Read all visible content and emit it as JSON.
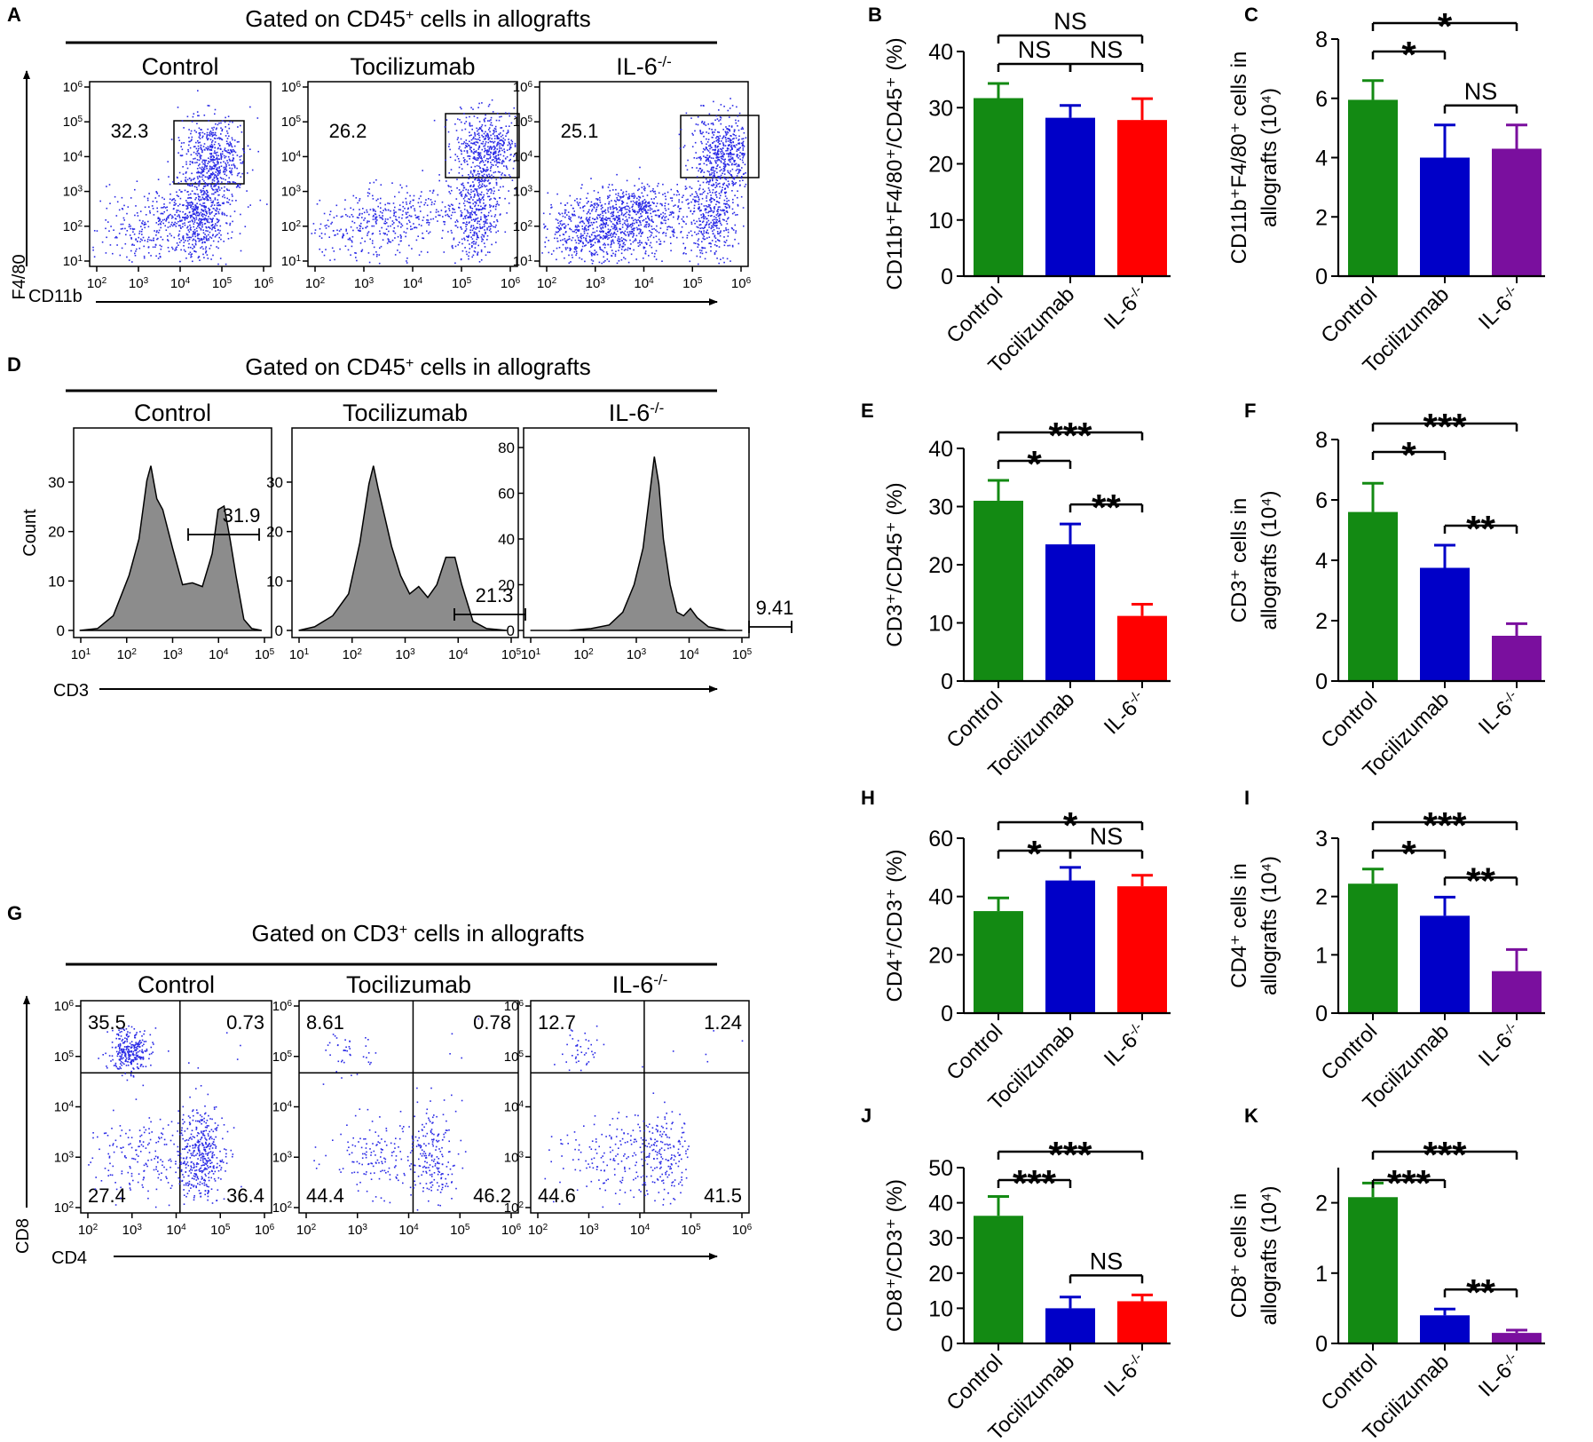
{
  "colors": {
    "control": "#138a13",
    "tocilizumab": "#0000c8",
    "il6_red": "#ff0000",
    "il6_purple": "#7a0f9e",
    "dot": "#2a2ae6",
    "histogram_fill": "#8c8c8c"
  },
  "panels": {
    "A": {
      "letter": "A",
      "header": {
        "pre": "Gated on CD45",
        "sup": "+",
        "post": " cells in allografts"
      },
      "ylabel": "F4/80",
      "xlabel": "CD11b",
      "plots": [
        {
          "title": "Control",
          "gate_value": "32.3"
        },
        {
          "title": "Tocilizumab",
          "gate_value": "26.2"
        },
        {
          "title": "IL-6",
          "title_sup": "-/-",
          "gate_value": "25.1"
        }
      ]
    },
    "D": {
      "letter": "D",
      "header": {
        "pre": "Gated on CD45",
        "sup": "+",
        "post": " cells in allografts"
      },
      "ylabel": "Count",
      "xlabel": "CD3",
      "plots": [
        {
          "title": "Control",
          "gate_value": "31.9",
          "yticks": [
            "0",
            "10",
            "20",
            "30"
          ]
        },
        {
          "title": "Tocilizumab",
          "gate_value": "21.3",
          "yticks": [
            "0",
            "10",
            "20",
            "30"
          ]
        },
        {
          "title": "IL-6",
          "title_sup": "-/-",
          "gate_value": "9.41",
          "yticks": [
            "0",
            "20",
            "40",
            "60",
            "80"
          ]
        }
      ]
    },
    "G": {
      "letter": "G",
      "header": {
        "pre": "Gated on CD3",
        "sup": "+",
        "post": " cells in allografts"
      },
      "ylabel": "CD8",
      "xlabel": "CD4",
      "plots": [
        {
          "title": "Control",
          "quadrants": [
            "35.5",
            "0.73",
            "27.4",
            "36.4"
          ]
        },
        {
          "title": "Tocilizumab",
          "quadrants": [
            "8.61",
            "0.78",
            "44.4",
            "46.2"
          ]
        },
        {
          "title": "IL-6",
          "title_sup": "-/-",
          "quadrants": [
            "12.7",
            "1.24",
            "44.6",
            "41.5"
          ]
        }
      ]
    }
  },
  "chart_data": [
    {
      "panel": "B",
      "type": "bar",
      "categories": [
        "Control",
        "Tocilizumab",
        "IL-6-/-"
      ],
      "values": [
        31.7,
        28.2,
        27.8
      ],
      "errors": [
        2.6,
        2.2,
        3.8
      ],
      "ylim": [
        0,
        40
      ],
      "yticks": [
        "0",
        "10",
        "20",
        "30",
        "40"
      ],
      "ylabel_lines": [
        "CD11b⁺F4/80⁺/CD45⁺ (%)"
      ],
      "color_key": [
        "control",
        "tocilizumab",
        "il6_red"
      ],
      "significance": [
        {
          "from": 0,
          "to": 1,
          "label": "NS",
          "level": 1
        },
        {
          "from": 1,
          "to": 2,
          "label": "NS",
          "level": 1
        },
        {
          "from": 0,
          "to": 2,
          "label": "NS",
          "level": 2
        }
      ]
    },
    {
      "panel": "C",
      "type": "bar",
      "categories": [
        "Control",
        "Tocilizumab",
        "IL-6-/-"
      ],
      "values": [
        5.95,
        4.0,
        4.3
      ],
      "errors": [
        0.65,
        1.1,
        0.8
      ],
      "ylim": [
        0,
        8
      ],
      "yticks": [
        "0",
        "2",
        "4",
        "6",
        "8"
      ],
      "ylabel_lines": [
        "CD11b⁺F4/80⁺ cells in",
        "allografts (10⁴)"
      ],
      "color_key": [
        "control",
        "tocilizumab",
        "il6_purple"
      ],
      "significance": [
        {
          "from": 0,
          "to": 1,
          "label": "*",
          "level": 1
        },
        {
          "from": 1,
          "to": 2,
          "label": "NS",
          "level": 0
        },
        {
          "from": 0,
          "to": 2,
          "label": "*",
          "level": 2
        }
      ]
    },
    {
      "panel": "E",
      "type": "bar",
      "categories": [
        "Control",
        "Tocilizumab",
        "IL-6-/-"
      ],
      "values": [
        31.0,
        23.5,
        11.2
      ],
      "errors": [
        3.5,
        3.5,
        2.0
      ],
      "ylim": [
        0,
        40
      ],
      "yticks": [
        "0",
        "10",
        "20",
        "30",
        "40"
      ],
      "ylabel_lines": [
        "CD3⁺/CD45⁺ (%)"
      ],
      "color_key": [
        "control",
        "tocilizumab",
        "il6_red"
      ],
      "significance": [
        {
          "from": 0,
          "to": 1,
          "label": "*",
          "level": 1
        },
        {
          "from": 1,
          "to": 2,
          "label": "**",
          "level": 0
        },
        {
          "from": 0,
          "to": 2,
          "label": "***",
          "level": 2
        }
      ]
    },
    {
      "panel": "F",
      "type": "bar",
      "categories": [
        "Control",
        "Tocilizumab",
        "IL-6-/-"
      ],
      "values": [
        5.6,
        3.75,
        1.5
      ],
      "errors": [
        0.95,
        0.75,
        0.4
      ],
      "ylim": [
        0,
        8
      ],
      "yticks": [
        "0",
        "2",
        "4",
        "6",
        "8"
      ],
      "ylabel_lines": [
        "CD3⁺ cells in",
        "allografts (10⁴)"
      ],
      "color_key": [
        "control",
        "tocilizumab",
        "il6_purple"
      ],
      "significance": [
        {
          "from": 0,
          "to": 1,
          "label": "*",
          "level": 1
        },
        {
          "from": 1,
          "to": 2,
          "label": "**",
          "level": 0
        },
        {
          "from": 0,
          "to": 2,
          "label": "***",
          "level": 2
        }
      ]
    },
    {
      "panel": "H",
      "type": "bar",
      "categories": [
        "Control",
        "Tocilizumab",
        "IL-6-/-"
      ],
      "values": [
        35.0,
        45.5,
        43.5
      ],
      "errors": [
        4.5,
        4.5,
        3.8
      ],
      "ylim": [
        0,
        60
      ],
      "yticks": [
        "0",
        "20",
        "40",
        "60"
      ],
      "ylabel_lines": [
        "CD4⁺/CD3⁺ (%)"
      ],
      "color_key": [
        "control",
        "tocilizumab",
        "il6_red"
      ],
      "significance": [
        {
          "from": 0,
          "to": 1,
          "label": "*",
          "level": 1
        },
        {
          "from": 1,
          "to": 2,
          "label": "NS",
          "level": 1
        },
        {
          "from": 0,
          "to": 2,
          "label": "*",
          "level": 2
        }
      ]
    },
    {
      "panel": "I",
      "type": "bar",
      "categories": [
        "Control",
        "Tocilizumab",
        "IL-6-/-"
      ],
      "values": [
        2.22,
        1.67,
        0.72
      ],
      "errors": [
        0.25,
        0.32,
        0.37
      ],
      "ylim": [
        0,
        3
      ],
      "yticks": [
        "0",
        "1",
        "2",
        "3"
      ],
      "ylabel_lines": [
        "CD4⁺ cells in",
        "allografts (10⁴)"
      ],
      "color_key": [
        "control",
        "tocilizumab",
        "il6_purple"
      ],
      "significance": [
        {
          "from": 0,
          "to": 1,
          "label": "*",
          "level": 1
        },
        {
          "from": 1,
          "to": 2,
          "label": "**",
          "level": 0
        },
        {
          "from": 0,
          "to": 2,
          "label": "***",
          "level": 2
        }
      ]
    },
    {
      "panel": "J",
      "type": "bar",
      "categories": [
        "Control",
        "Tocilizumab",
        "IL-6-/-"
      ],
      "values": [
        36.3,
        10.0,
        12.0
      ],
      "errors": [
        5.5,
        3.2,
        1.8
      ],
      "ylim": [
        0,
        50
      ],
      "yticks": [
        "0",
        "10",
        "20",
        "30",
        "40",
        "50"
      ],
      "ylabel_lines": [
        "CD8⁺/CD3⁺ (%)"
      ],
      "color_key": [
        "control",
        "tocilizumab",
        "il6_red"
      ],
      "significance": [
        {
          "from": 0,
          "to": 1,
          "label": "***",
          "level": 1
        },
        {
          "from": 1,
          "to": 2,
          "label": "NS",
          "level": 0
        },
        {
          "from": 0,
          "to": 2,
          "label": "***",
          "level": 2
        }
      ]
    },
    {
      "panel": "K",
      "type": "bar",
      "categories": [
        "Control",
        "Tocilizumab",
        "IL-6-/-"
      ],
      "values": [
        2.08,
        0.4,
        0.15
      ],
      "errors": [
        0.2,
        0.09,
        0.04
      ],
      "ylim": [
        0,
        2.5
      ],
      "yticks": [
        "0",
        "1",
        "2"
      ],
      "ylabel_lines": [
        "CD8⁺ cells in",
        "allografts (10⁴)"
      ],
      "color_key": [
        "control",
        "tocilizumab",
        "il6_purple"
      ],
      "significance": [
        {
          "from": 0,
          "to": 1,
          "label": "***",
          "level": 1
        },
        {
          "from": 1,
          "to": 2,
          "label": "**",
          "level": 0
        },
        {
          "from": 0,
          "to": 2,
          "label": "***",
          "level": 2
        }
      ]
    }
  ]
}
